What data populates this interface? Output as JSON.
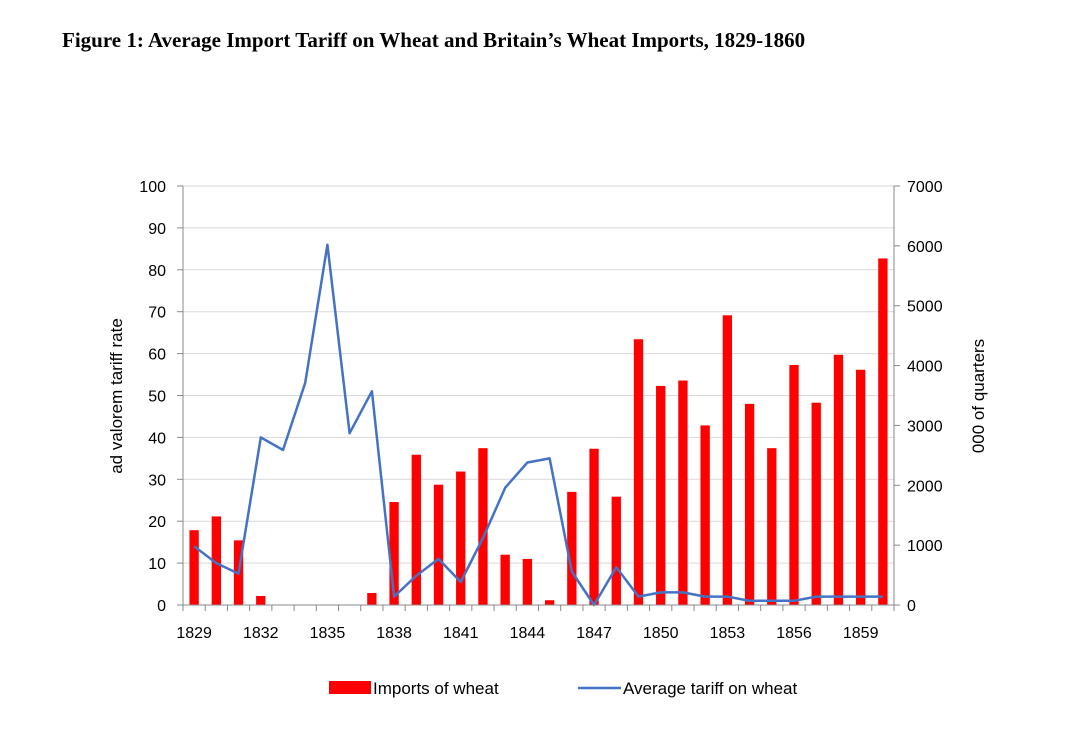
{
  "figure_title": "Figure 1: Average Import Tariff on Wheat and Britain’s Wheat Imports, 1829-1860",
  "chart_data": {
    "type": "bar",
    "title": "Figure 1: Average Import Tariff on Wheat and Britain’s Wheat Imports, 1829-1860",
    "x": [
      1829,
      1830,
      1831,
      1832,
      1833,
      1834,
      1835,
      1836,
      1837,
      1838,
      1839,
      1840,
      1841,
      1842,
      1843,
      1844,
      1845,
      1846,
      1847,
      1848,
      1849,
      1850,
      1851,
      1852,
      1853,
      1854,
      1855,
      1856,
      1857,
      1858,
      1859,
      1860
    ],
    "x_tick_labels": [
      "1829",
      "1832",
      "1835",
      "1838",
      "1841",
      "1844",
      "1847",
      "1850",
      "1853",
      "1856",
      "1859"
    ],
    "ylabel_left": "ad valorem tariff rate",
    "ylabel_right": "000 of quarters",
    "ylim_left": [
      0,
      100
    ],
    "ylim_right": [
      0,
      7000
    ],
    "y_left_ticks": [
      "0",
      "10",
      "20",
      "30",
      "40",
      "50",
      "60",
      "70",
      "80",
      "90",
      "100"
    ],
    "y_right_ticks": [
      "0",
      "1000",
      "2000",
      "3000",
      "4000",
      "5000",
      "6000",
      "7000"
    ],
    "grid": true,
    "legend_position": "bottom",
    "series": [
      {
        "name": "Imports of wheat",
        "type": "bar",
        "axis": "right",
        "color": "#ff0000",
        "values": [
          1250,
          1480,
          1080,
          150,
          0,
          0,
          0,
          0,
          200,
          1720,
          2510,
          2010,
          2230,
          2620,
          840,
          770,
          80,
          1890,
          2610,
          1810,
          4440,
          3660,
          3750,
          3000,
          4840,
          3360,
          2620,
          4010,
          3380,
          4180,
          3930,
          5790
        ]
      },
      {
        "name": "Average tariff on wheat",
        "type": "line",
        "axis": "left",
        "color": "#4472c4",
        "values": [
          14,
          10,
          7.5,
          40,
          37,
          53,
          86,
          41,
          51,
          2,
          7,
          11,
          5.5,
          16,
          28,
          34,
          35,
          8,
          0,
          9,
          2,
          3,
          3,
          2,
          2,
          1,
          1,
          1,
          2,
          2,
          2,
          2
        ]
      }
    ]
  }
}
